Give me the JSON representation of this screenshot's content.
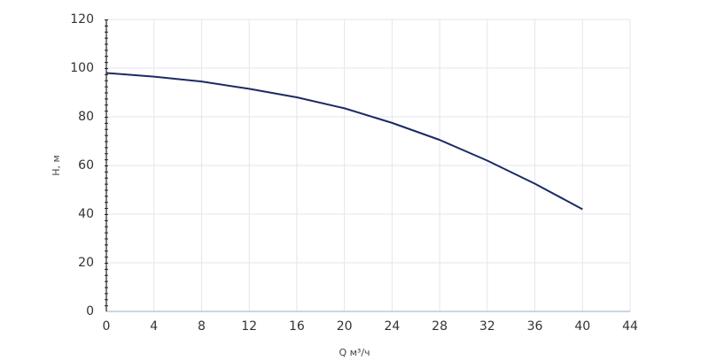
{
  "chart_data": {
    "type": "line",
    "x_label": "Q м³/ч",
    "y_label": "H, м",
    "x": [
      0,
      4,
      8,
      12,
      16,
      20,
      24,
      28,
      32,
      36,
      40
    ],
    "values": [
      98,
      96.5,
      94.5,
      91.5,
      88,
      83.5,
      77.5,
      70.5,
      62,
      52.5,
      42
    ],
    "color": "#1b2a66",
    "xlim": [
      0,
      44
    ],
    "xticks": [
      0,
      4,
      8,
      12,
      16,
      20,
      24,
      28,
      32,
      36,
      40,
      44
    ],
    "ylim": [
      0,
      120
    ],
    "yticks": [
      0,
      20,
      40,
      60,
      80,
      100,
      120
    ],
    "grid": true
  }
}
